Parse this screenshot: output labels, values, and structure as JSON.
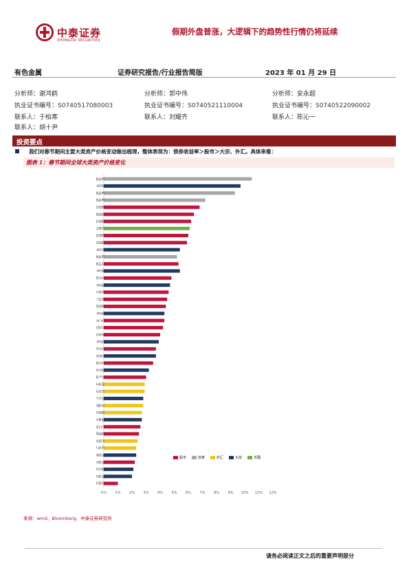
{
  "header": {
    "logo_cn": "中泰证券",
    "logo_en": "ZHONGTAI SECURITIES",
    "report_title": "假期外盘普涨，大逻辑下的趋势性行情仍将延续"
  },
  "meta": {
    "industry": "有色金属",
    "report_type": "证券研究报告/行业报告简版",
    "date": "2023 年 01 月 29 日"
  },
  "analysts": [
    {
      "name": "分析师：谢鸿鹤",
      "cert": "执业证书编号：S0740517080003",
      "contact": "联系人：于柏寒",
      "contact2": "联系人：胡十尹"
    },
    {
      "name": "分析师：郭中伟",
      "cert": "执业证书编号：S0740521110004",
      "contact": "联系人：刘耀齐",
      "contact2": ""
    },
    {
      "name": "分析师：安永超",
      "cert": "执业证书编号：S0740522090002",
      "contact": "联系人：陈沁一",
      "contact2": ""
    }
  ],
  "section": {
    "title": "投资要点",
    "bullet": "我们对春节期间主要大类资产价格变动做出梳理，整体表现为：债券收益率＞股市＞大宗、外汇。具体来看："
  },
  "figure": {
    "title": "图表 1：春节期间全球大类资产价格变化",
    "source": "来源：wind、Bloomberg、中泰证券研究所"
  },
  "colors": {
    "stock": "#c0143c",
    "bond": "#a6a6a6",
    "fx": "#f2c418",
    "commodity": "#1f3864",
    "crypto": "#70ad47"
  },
  "chart_data": {
    "type": "bar",
    "orientation": "horizontal",
    "title": "",
    "xlabel": "",
    "ylabel": "",
    "xlim": [
      0,
      12
    ],
    "x_ticks": [
      "0%",
      "1%",
      "2%",
      "3%",
      "4%",
      "5%",
      "6%",
      "7%",
      "8%",
      "9%",
      "10%",
      "11%",
      "12%"
    ],
    "legend": [
      "股市",
      "债券",
      "外汇",
      "大宗",
      "币圈"
    ],
    "legend_position": "bottom-right",
    "categories": [
      "日本10年期国债收益率",
      "LME铜",
      "美国10年期国债收益率",
      "德国10年期国债收益率",
      "韩国综合指数",
      "越南胡志明指数",
      "中国香港恒生指数",
      "比特币",
      "恒生中国企业指数",
      "恒生科技指数",
      "LME锌",
      "英国10年期国债收益率",
      "印度孟买",
      "LME镍",
      "标普500",
      "LME铝",
      "MSCI新兴市场",
      "MSCI全球",
      "纳斯达克指数",
      "LME锡",
      "法国CAC40",
      "欧洲斯托克50",
      "MSCI发达市场",
      "LME铅",
      "英国富时100",
      "LME锌2",
      "德国DAX",
      "COMEX银",
      "印度卢比",
      "澳大利亚",
      "美元兑日元",
      "CBOT大豆",
      "美元兑欧元",
      "美元指数",
      "COMEX黄金",
      "日经225",
      "巴西指数",
      "欧元兑美元",
      "美元兑人民币",
      "布伦特原油",
      "NYMEX原油",
      "COMEX铜",
      "WTI原油",
      "比特币现货"
    ],
    "groups": [
      "bond",
      "commodity",
      "bond",
      "bond",
      "stock",
      "stock",
      "stock",
      "crypto",
      "stock",
      "stock",
      "commodity",
      "bond",
      "stock",
      "commodity",
      "stock",
      "commodity",
      "stock",
      "stock",
      "stock",
      "commodity",
      "stock",
      "stock",
      "stock",
      "commodity",
      "stock",
      "commodity",
      "stock",
      "commodity",
      "stock",
      "fx",
      "fx",
      "commodity",
      "fx",
      "fx",
      "commodity",
      "stock",
      "stock",
      "fx",
      "fx",
      "commodity",
      "stock",
      "commodity",
      "commodity",
      "stock"
    ],
    "values": [
      10.5,
      9.7,
      9.3,
      7.2,
      6.8,
      6.4,
      6.2,
      6.1,
      6.0,
      5.9,
      5.4,
      5.2,
      5.3,
      5.4,
      4.8,
      4.7,
      4.6,
      4.5,
      4.4,
      4.3,
      4.3,
      4.2,
      4.0,
      3.9,
      3.7,
      3.7,
      3.5,
      3.2,
      3.0,
      2.9,
      2.9,
      2.8,
      2.8,
      2.7,
      2.7,
      2.6,
      2.5,
      2.4,
      2.3,
      2.3,
      2.2,
      2.1,
      2.0,
      1.0
    ]
  },
  "footer": {
    "disclaimer": "请务必阅读正文之后的重要声明部分"
  }
}
